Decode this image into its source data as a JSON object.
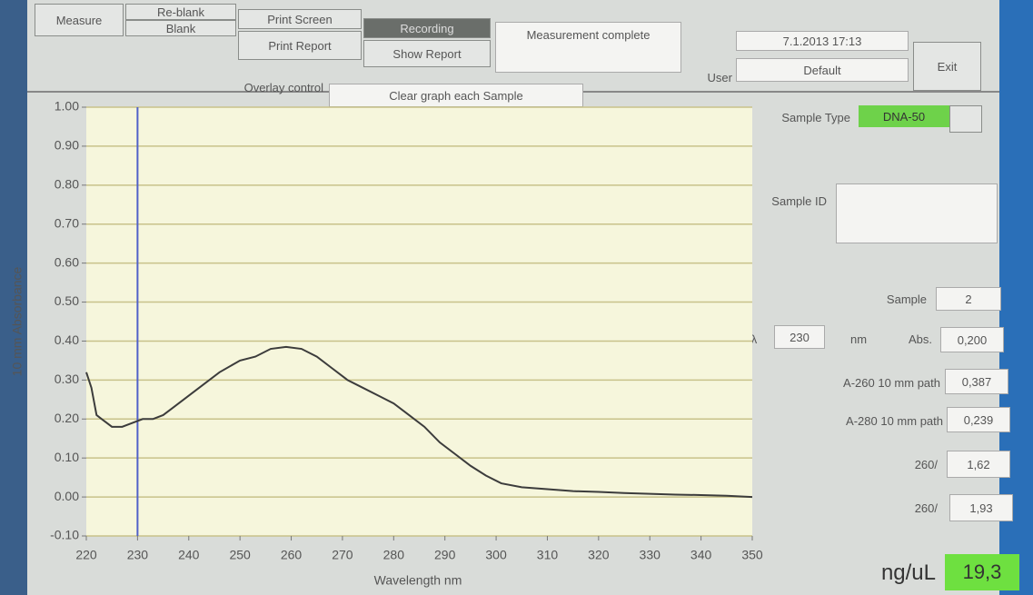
{
  "toolbar": {
    "measure": "Measure",
    "reblank": "Re-blank",
    "blank": "Blank",
    "print_screen": "Print Screen",
    "print_report": "Print Report",
    "recording": "Recording",
    "show_report": "Show Report",
    "status": "Measurement complete",
    "datetime": "7.1.2013 17:13",
    "user_label": "User",
    "user": "Default",
    "exit": "Exit"
  },
  "overlay": {
    "label": "Overlay control",
    "value": "Clear graph each Sample"
  },
  "panel": {
    "sample_type_label": "Sample Type",
    "sample_type": "DNA-50",
    "sample_id_label": "Sample ID",
    "sample_label": "Sample",
    "sample": "2",
    "lambda_label": "λ",
    "lambda": "230",
    "lambda_unit": "nm",
    "abs_label": "Abs.",
    "abs": "0,200",
    "a260_label": "A-260 10 mm path",
    "a260": "0,387",
    "a280_label": "A-280 10 mm path",
    "a280": "0,239",
    "ratio1_label": "260/",
    "ratio1": "1,62",
    "ratio2_label": "260/",
    "ratio2": "1,93",
    "conc_label": "ng/uL",
    "conc": "19,3"
  },
  "chart_data": {
    "type": "line",
    "x_label": "Wavelength nm",
    "y_label": "10 mm Absorbance",
    "x": [
      220,
      221,
      222,
      223,
      224,
      225,
      227,
      229,
      231,
      233,
      235,
      237,
      240,
      243,
      246,
      250,
      253,
      256,
      259,
      262,
      265,
      268,
      271,
      274,
      277,
      280,
      283,
      286,
      289,
      292,
      295,
      298,
      301,
      305,
      310,
      315,
      320,
      325,
      330,
      335,
      340,
      345,
      350
    ],
    "values": [
      0.32,
      0.28,
      0.21,
      0.2,
      0.19,
      0.18,
      0.18,
      0.19,
      0.2,
      0.2,
      0.21,
      0.23,
      0.26,
      0.29,
      0.32,
      0.35,
      0.36,
      0.38,
      0.385,
      0.38,
      0.36,
      0.33,
      0.3,
      0.28,
      0.26,
      0.24,
      0.21,
      0.18,
      0.14,
      0.11,
      0.08,
      0.055,
      0.035,
      0.025,
      0.02,
      0.015,
      0.013,
      0.01,
      0.008,
      0.006,
      0.005,
      0.003,
      0.0
    ],
    "color": "#3c3c3c",
    "cursor_x": 230,
    "cursor_color": "#5060c8",
    "xlim": [
      220,
      350
    ],
    "ylim": [
      -0.1,
      1.0
    ],
    "xticks": [
      220,
      230,
      240,
      250,
      260,
      270,
      280,
      290,
      300,
      310,
      320,
      330,
      340,
      350
    ],
    "yticks": [
      {
        "value": -0.1,
        "label": "-0.10"
      },
      {
        "value": 0,
        "label": "0.00"
      },
      {
        "value": 0.1,
        "label": "0.10"
      },
      {
        "value": 0.2,
        "label": "0.20"
      },
      {
        "value": 0.3,
        "label": "0.30"
      },
      {
        "value": 0.4,
        "label": "0.40"
      },
      {
        "value": 0.5,
        "label": "0.50"
      },
      {
        "value": 0.6,
        "label": "0.60"
      },
      {
        "value": 0.7,
        "label": "0.70"
      },
      {
        "value": 0.8,
        "label": "0.80"
      },
      {
        "value": 0.9,
        "label": "0.90"
      },
      {
        "value": 1.0,
        "label": "1.00"
      }
    ],
    "grid": true
  }
}
